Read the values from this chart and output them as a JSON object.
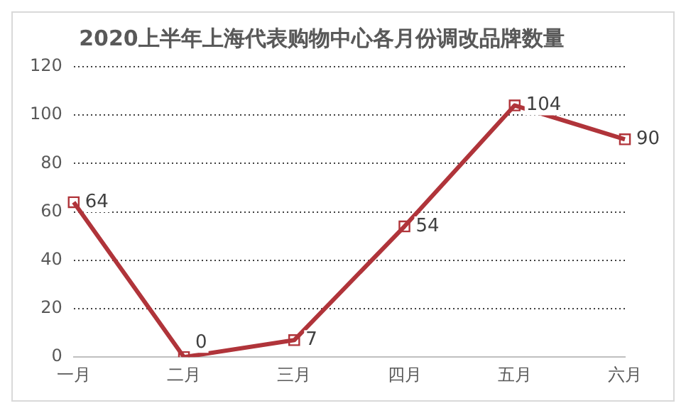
{
  "chart_data": {
    "type": "line",
    "title": "2020上半年上海代表购物中心各月份调改品牌数量",
    "categories": [
      "一月",
      "二月",
      "三月",
      "四月",
      "五月",
      "六月"
    ],
    "series": [
      {
        "color": "#b0343a",
        "values": [
          64,
          0,
          7,
          54,
          104,
          90
        ]
      }
    ],
    "ylim": [
      0,
      120
    ],
    "yticks": [
      0,
      20,
      40,
      60,
      80,
      100,
      120
    ],
    "grid": "y",
    "legend": false,
    "marker": "square",
    "line_style": "solid",
    "data_labels": true
  }
}
